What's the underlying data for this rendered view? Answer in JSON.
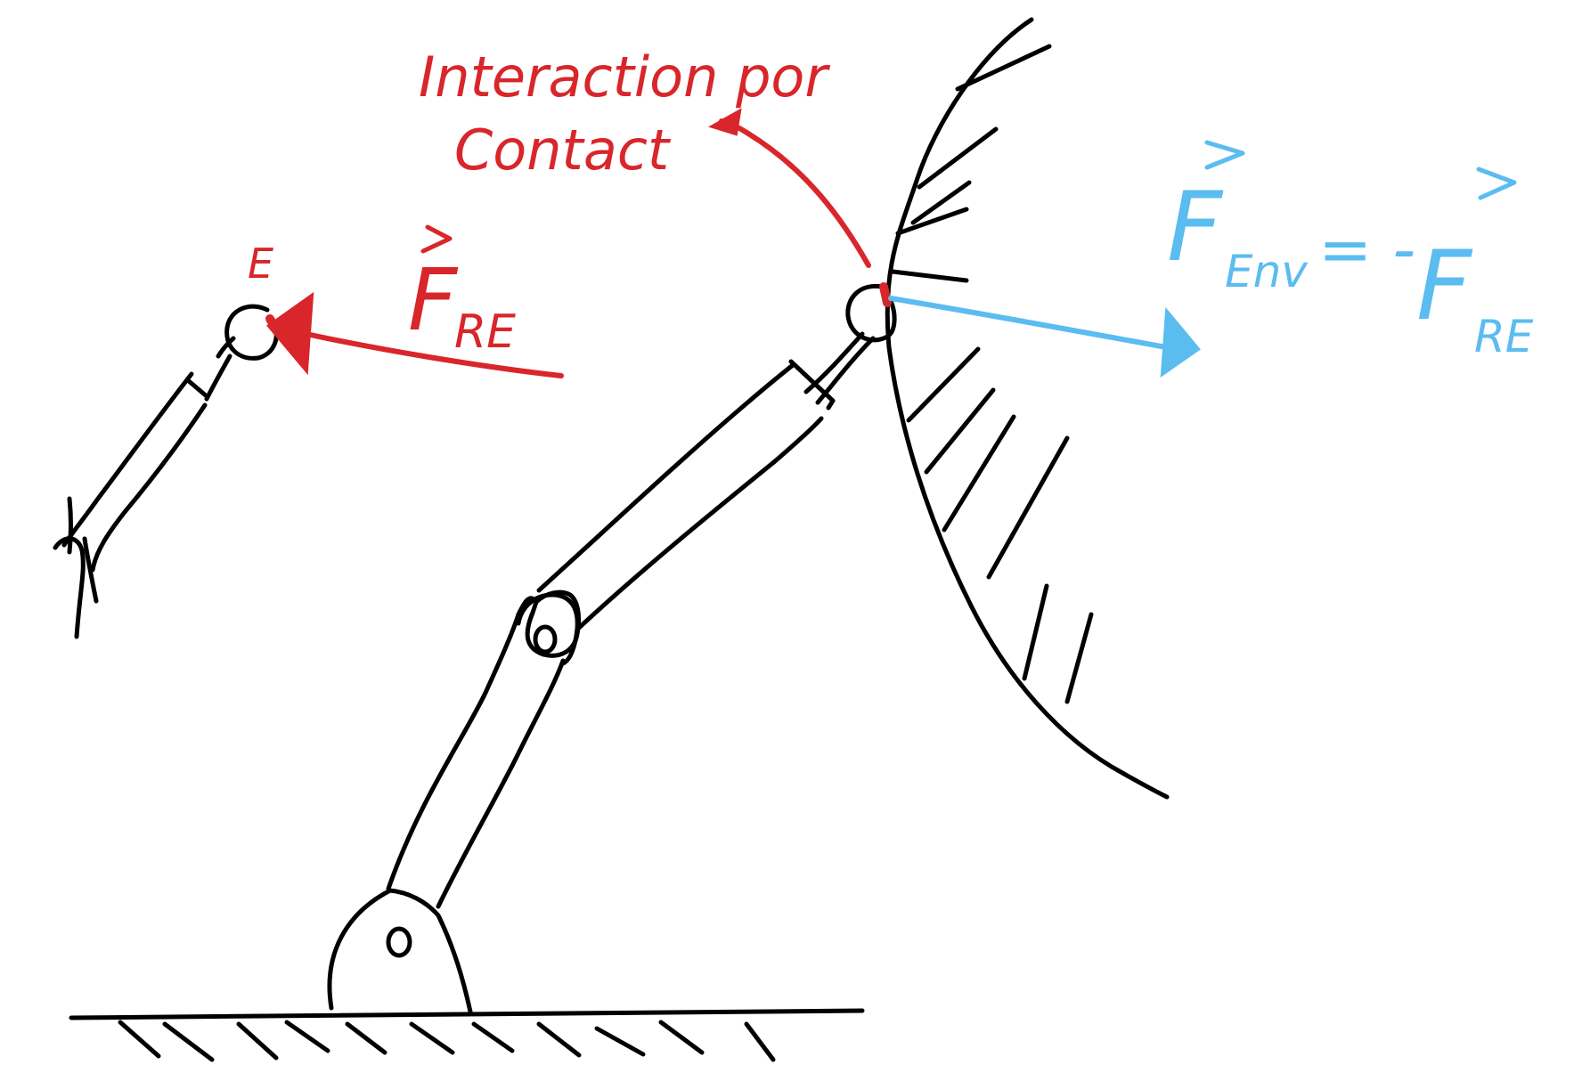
{
  "colors": {
    "ink": "#000000",
    "interaction": "#d8262b",
    "environment_force": "#5bbcf0",
    "background": "#ffffff"
  },
  "labels": {
    "end_effector": "E",
    "interaction_line1": "Interaction por",
    "interaction_line2": "Contact",
    "force_robot": {
      "symbol": "F",
      "subscript": "RE"
    },
    "force_env": {
      "symbol": "F",
      "subscript": "Env",
      "equals": "= -",
      "rhs_symbol": "F",
      "rhs_subscript": "RE"
    }
  }
}
